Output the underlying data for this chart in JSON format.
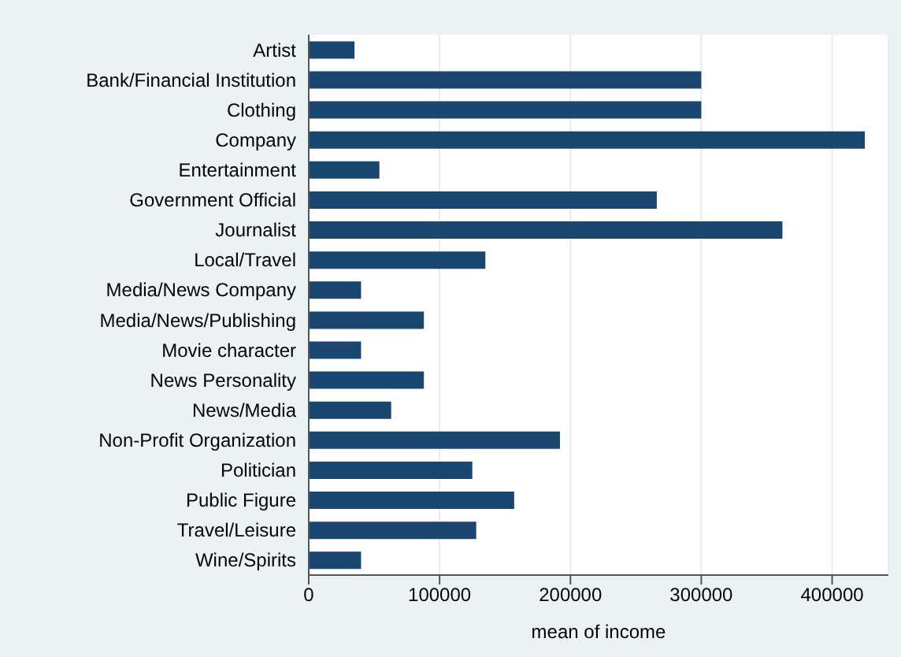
{
  "chart_data": {
    "type": "bar",
    "orientation": "horizontal",
    "xlabel": "mean of income",
    "categories": [
      "Artist",
      "Bank/Financial Institution",
      "Clothing",
      "Company",
      "Entertainment",
      "Government Official",
      "Journalist",
      "Local/Travel",
      "Media/News Company",
      "Media/News/Publishing",
      "Movie character",
      "News Personality",
      "News/Media",
      "Non-Profit Organization",
      "Politician",
      "Public Figure",
      "Travel/Leisure",
      "Wine/Spirits"
    ],
    "values": [
      35000,
      300000,
      300000,
      425000,
      54000,
      266000,
      362000,
      135000,
      40000,
      88000,
      40000,
      88000,
      63000,
      192000,
      125000,
      157000,
      128000,
      40000
    ],
    "color": "#1a476f",
    "xlim": [
      0,
      443000
    ],
    "xticks": [
      0,
      100000,
      200000,
      300000,
      400000
    ],
    "grid": "x"
  }
}
